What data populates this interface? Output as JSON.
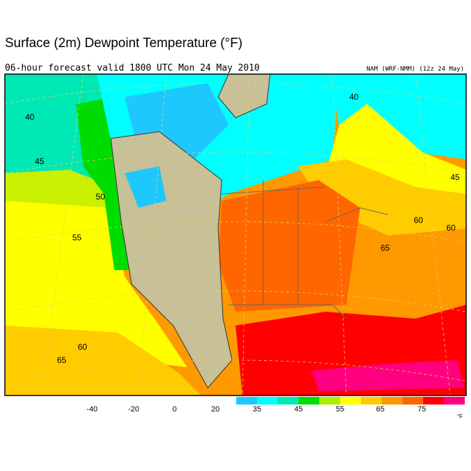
{
  "header": {
    "title": "Surface (2m) Dewpoint Temperature (°F)",
    "subtitle": "06-hour forecast valid 1800 UTC Mon 24 May 2010",
    "model": "NAM (WRF-NMM) (12z 24 May)"
  },
  "map": {
    "contour_labels": [
      40,
      45,
      50,
      55,
      60,
      65,
      40,
      45,
      60,
      60,
      65
    ]
  },
  "colorbar": {
    "ticks": [
      -40,
      -20,
      0,
      20,
      35,
      45,
      55,
      65,
      75
    ],
    "unit": "°F",
    "colors": [
      "#1ec8ff",
      "#00ffff",
      "#00e8b4",
      "#00dc00",
      "#a8f000",
      "#ffff00",
      "#ffcc00",
      "#ff9900",
      "#ff6600",
      "#ff0000",
      "#ff0080"
    ]
  }
}
